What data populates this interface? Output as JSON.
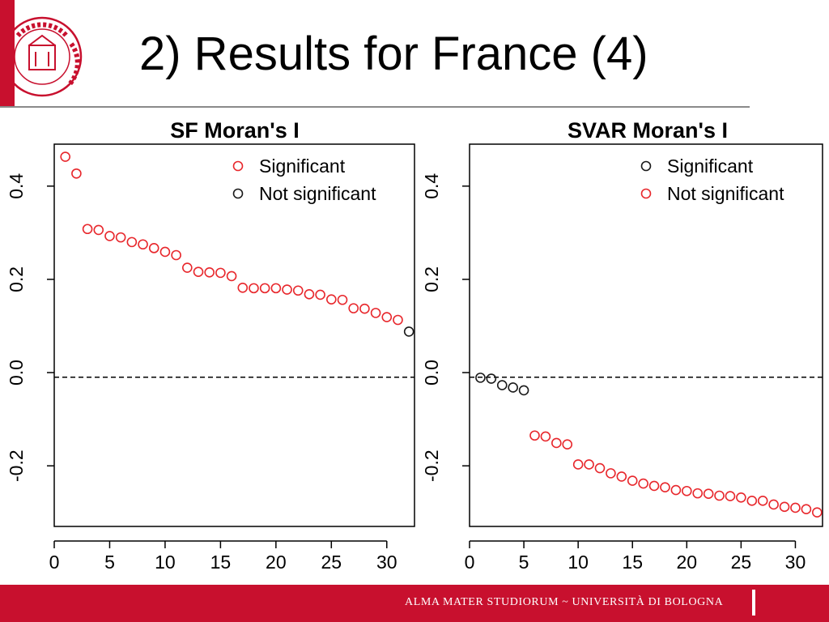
{
  "slide": {
    "title": "2) Results for France (4)",
    "footer": "ALMA MATER STUDIORUM ~ UNIVERSITÀ DI BOLOGNA",
    "seal_text": "STUDIORUM DI BOLOGNA"
  },
  "colors": {
    "brand_red": "#c8102e",
    "significant_red": "#e8272c",
    "not_significant_black": "#1a1a1a"
  },
  "chart_data": [
    {
      "type": "scatter",
      "title": "SF Moran's I",
      "xlabel": "",
      "ylabel": "",
      "xlim": [
        0,
        32.5
      ],
      "ylim": [
        -0.33,
        0.49
      ],
      "x_ticks": [
        0,
        5,
        10,
        15,
        20,
        25,
        30
      ],
      "y_ticks": [
        -0.2,
        0.0,
        0.2,
        0.4
      ],
      "reference_line": {
        "y": -0.01,
        "style": "dashed"
      },
      "legend": {
        "position": "top-right",
        "entries": [
          {
            "label": "Significant",
            "color": "#e8272c"
          },
          {
            "label": "Not significant",
            "color": "#1a1a1a"
          }
        ]
      },
      "series": [
        {
          "name": "Significant",
          "color": "#e8272c",
          "x": [
            1,
            2,
            3,
            4,
            5,
            6,
            7,
            8,
            9,
            10,
            11,
            12,
            13,
            14,
            15,
            16,
            17,
            18,
            19,
            20,
            21,
            22,
            23,
            24,
            25,
            26,
            27,
            28,
            29,
            30,
            31
          ],
          "y": [
            0.463,
            0.427,
            0.308,
            0.306,
            0.293,
            0.29,
            0.28,
            0.275,
            0.267,
            0.259,
            0.252,
            0.225,
            0.216,
            0.215,
            0.214,
            0.207,
            0.182,
            0.181,
            0.181,
            0.181,
            0.178,
            0.176,
            0.168,
            0.167,
            0.157,
            0.156,
            0.138,
            0.137,
            0.128,
            0.119,
            0.113
          ]
        },
        {
          "name": "Not significant",
          "color": "#1a1a1a",
          "x": [
            32
          ],
          "y": [
            0.088
          ]
        }
      ]
    },
    {
      "type": "scatter",
      "title": "SVAR Moran's I",
      "xlabel": "",
      "ylabel": "",
      "xlim": [
        0,
        32.5
      ],
      "ylim": [
        -0.33,
        0.49
      ],
      "x_ticks": [
        0,
        5,
        10,
        15,
        20,
        25,
        30
      ],
      "y_ticks": [
        -0.2,
        0.0,
        0.2,
        0.4
      ],
      "reference_line": {
        "y": -0.01,
        "style": "dashed"
      },
      "legend": {
        "position": "top-right",
        "entries": [
          {
            "label": "Significant",
            "color": "#1a1a1a"
          },
          {
            "label": "Not significant",
            "color": "#e8272c"
          }
        ]
      },
      "series": [
        {
          "name": "Significant",
          "color": "#1a1a1a",
          "x": [
            1,
            2,
            3,
            4,
            5
          ],
          "y": [
            -0.011,
            -0.013,
            -0.027,
            -0.032,
            -0.038
          ]
        },
        {
          "name": "Not significant",
          "color": "#e8272c",
          "x": [
            6,
            7,
            8,
            9,
            10,
            11,
            12,
            13,
            14,
            15,
            16,
            17,
            18,
            19,
            20,
            21,
            22,
            23,
            24,
            25,
            26,
            27,
            28,
            29,
            30,
            31,
            32
          ],
          "y": [
            -0.135,
            -0.137,
            -0.151,
            -0.154,
            -0.197,
            -0.197,
            -0.205,
            -0.216,
            -0.223,
            -0.232,
            -0.238,
            -0.243,
            -0.246,
            -0.252,
            -0.254,
            -0.259,
            -0.26,
            -0.264,
            -0.265,
            -0.268,
            -0.275,
            -0.275,
            -0.283,
            -0.288,
            -0.29,
            -0.293,
            -0.3
          ]
        }
      ]
    }
  ]
}
